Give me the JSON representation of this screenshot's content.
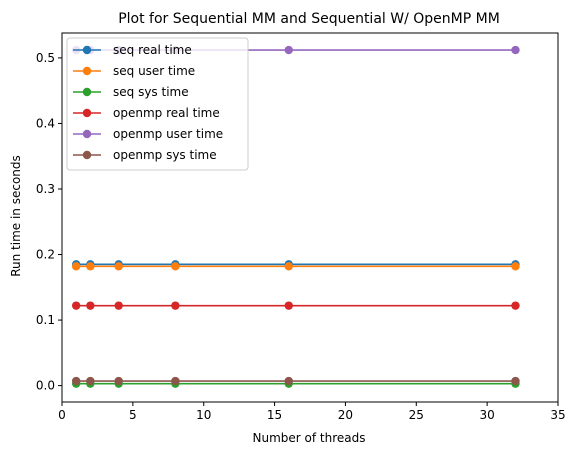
{
  "chart_data": {
    "type": "line",
    "title": "Plot for Sequential MM and Sequential W/ OpenMP MM",
    "xlabel": "Number of threads",
    "ylabel": "Run time in seconds",
    "xlim": [
      0,
      35
    ],
    "ylim": [
      -0.025,
      0.538
    ],
    "xticks": [
      0,
      5,
      10,
      15,
      20,
      25,
      30,
      35
    ],
    "yticks": [
      0.0,
      0.1,
      0.2,
      0.3,
      0.4,
      0.5
    ],
    "xtick_labels": [
      "0",
      "5",
      "10",
      "15",
      "20",
      "25",
      "30",
      "35"
    ],
    "ytick_labels": [
      "0.0",
      "0.1",
      "0.2",
      "0.3",
      "0.4",
      "0.5"
    ],
    "grid": false,
    "legend_position": "upper-left",
    "x": [
      1,
      2,
      4,
      8,
      16,
      32
    ],
    "series": [
      {
        "name": "seq real time",
        "color": "#1f77b4",
        "values": [
          0.185,
          0.185,
          0.185,
          0.185,
          0.185,
          0.185
        ]
      },
      {
        "name": "seq user time",
        "color": "#ff7f0e",
        "values": [
          0.182,
          0.182,
          0.182,
          0.182,
          0.182,
          0.182
        ]
      },
      {
        "name": "seq sys time",
        "color": "#2ca02c",
        "values": [
          0.003,
          0.003,
          0.003,
          0.003,
          0.003,
          0.003
        ]
      },
      {
        "name": "openmp real time",
        "color": "#d62728",
        "values": [
          0.122,
          0.122,
          0.122,
          0.122,
          0.122,
          0.122
        ]
      },
      {
        "name": "openmp user time",
        "color": "#9467bd",
        "values": [
          0.512,
          0.512,
          0.512,
          0.512,
          0.512,
          0.512
        ]
      },
      {
        "name": "openmp sys time",
        "color": "#8c564b",
        "values": [
          0.007,
          0.007,
          0.007,
          0.007,
          0.007,
          0.007
        ]
      }
    ]
  }
}
